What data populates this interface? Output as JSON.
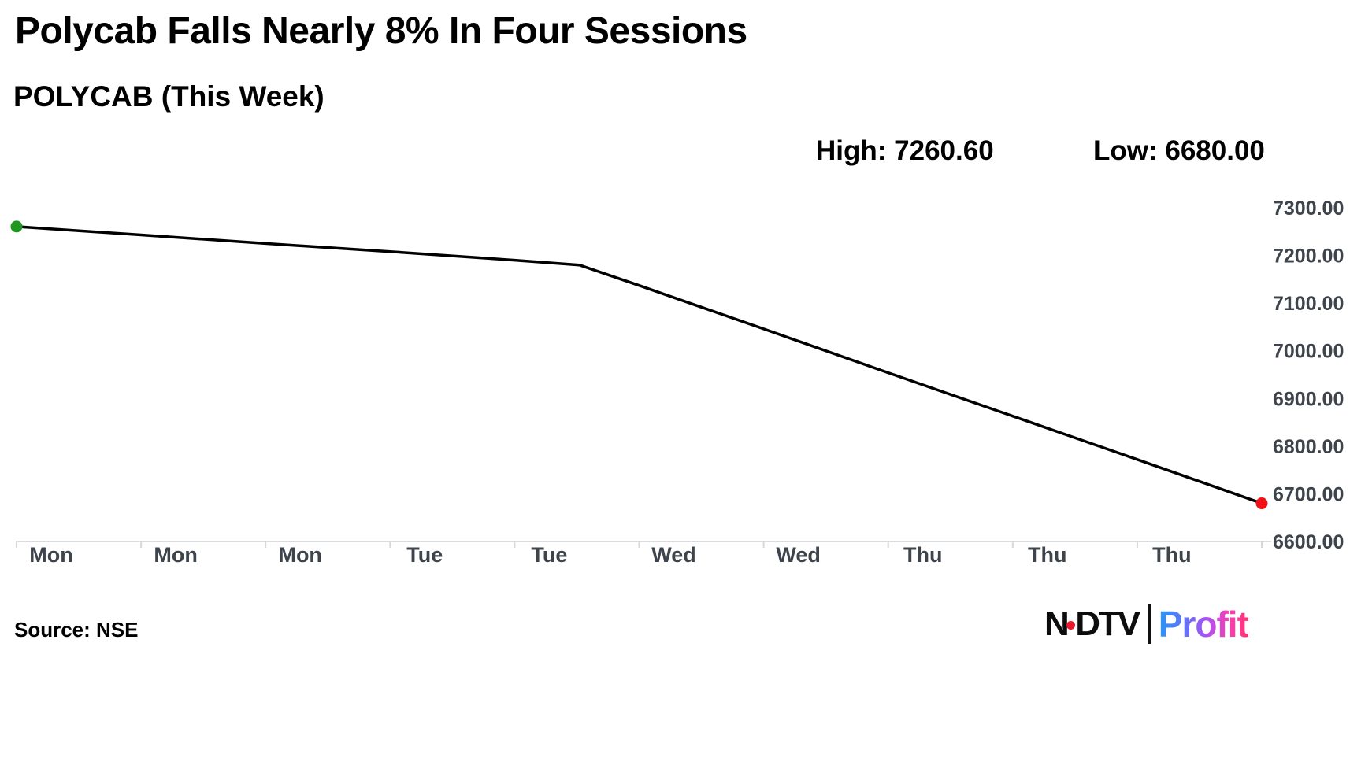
{
  "header": {
    "title": "Polycab Falls Nearly 8% In Four Sessions",
    "subtitle": "POLYCAB (This Week)",
    "high": "High: 7260.60",
    "low": "Low: 6680.00"
  },
  "chart_data": {
    "type": "line",
    "title": "POLYCAB (This Week)",
    "xlabel": "",
    "ylabel": "",
    "categories": [
      "Mon",
      "Mon",
      "Mon",
      "Tue",
      "Tue",
      "Wed",
      "Wed",
      "Thu",
      "Thu",
      "Thu"
    ],
    "y_tick_labels": [
      "6600.00",
      "6700.00",
      "6800.00",
      "6900.00",
      "7000.00",
      "7100.00",
      "7200.00",
      "7300.00"
    ],
    "ylim": [
      6600,
      7300
    ],
    "high": 7260.6,
    "low": 6680.0,
    "grid": false,
    "legend": "none",
    "series": [
      {
        "name": "POLYCAB",
        "points": [
          {
            "f": 0.0,
            "v": 7260.6
          },
          {
            "f": 0.1,
            "v": 7243
          },
          {
            "f": 0.2,
            "v": 7225
          },
          {
            "f": 0.3,
            "v": 7208
          },
          {
            "f": 0.4,
            "v": 7190
          },
          {
            "f": 0.452,
            "v": 7180
          },
          {
            "f": 0.5,
            "v": 7137
          },
          {
            "f": 0.6,
            "v": 7046
          },
          {
            "f": 0.7,
            "v": 6954
          },
          {
            "f": 0.8,
            "v": 6863
          },
          {
            "f": 0.9,
            "v": 6772
          },
          {
            "f": 1.0,
            "v": 6680
          }
        ]
      }
    ],
    "colors": {
      "line": "#000000",
      "start_dot": "#1e9620",
      "end_dot": "#f01016",
      "axis": "#d9dcdf",
      "tick": "#d6d9dc",
      "tick_text": "#3e444b"
    }
  },
  "footer": {
    "source": "Source: NSE",
    "logo": {
      "ndtv_n": "N",
      "ndtv_rest": "DTV",
      "profit": "Profit",
      "dot_color": "#e8192c",
      "profit_gradient": [
        "#2a96f3",
        "#a653f4",
        "#fd2f6e"
      ]
    }
  }
}
